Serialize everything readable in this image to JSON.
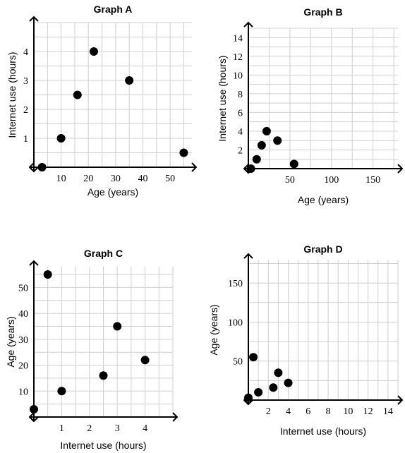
{
  "chart_data": [
    {
      "id": "A",
      "type": "scatter",
      "title": "Graph A",
      "xlabel": "Age (years)",
      "ylabel": "Internet use (hours)",
      "xlim": [
        0,
        58
      ],
      "ylim": [
        0,
        5
      ],
      "x_minor": 5,
      "y_minor": 0.5,
      "x_ticks": [
        10,
        20,
        30,
        40,
        50
      ],
      "y_ticks": [
        1,
        2,
        3,
        4
      ],
      "x": [
        3,
        10,
        16,
        22,
        35,
        55
      ],
      "y": [
        0,
        1,
        2.5,
        4,
        3,
        0.5
      ],
      "grid": true
    },
    {
      "id": "B",
      "type": "scatter",
      "title": "Graph B",
      "xlabel": "Age (years)",
      "ylabel": "Internet use (hours)",
      "xlim": [
        0,
        180
      ],
      "ylim": [
        0,
        15
      ],
      "x_minor": 25,
      "y_minor": 1,
      "x_ticks": [
        50,
        100,
        150
      ],
      "y_ticks": [
        2,
        4,
        6,
        8,
        10,
        12,
        14
      ],
      "x": [
        3,
        10,
        16,
        22,
        35,
        55
      ],
      "y": [
        0,
        1,
        2.5,
        4,
        3,
        0.5
      ],
      "grid": true
    },
    {
      "id": "C",
      "type": "scatter",
      "title": "Graph C",
      "xlabel": "Internet use (hours)",
      "ylabel": "Age (years)",
      "xlim": [
        0,
        5
      ],
      "ylim": [
        0,
        58
      ],
      "x_minor": 0.5,
      "y_minor": 5,
      "x_ticks": [
        1,
        2,
        3,
        4
      ],
      "y_ticks": [
        10,
        20,
        30,
        40,
        50
      ],
      "x": [
        0,
        1,
        2.5,
        4,
        3,
        0.5
      ],
      "y": [
        3,
        10,
        16,
        22,
        35,
        55
      ],
      "grid": true
    },
    {
      "id": "D",
      "type": "scatter",
      "title": "Graph D",
      "xlabel": "Internet use (hours)",
      "ylabel": "Age (years)",
      "xlim": [
        0,
        15
      ],
      "ylim": [
        0,
        180
      ],
      "x_minor": 1,
      "y_minor": 25,
      "x_ticks": [
        2,
        4,
        6,
        8,
        10,
        12,
        14
      ],
      "y_ticks": [
        50,
        100,
        150
      ],
      "x": [
        0,
        1,
        2.5,
        4,
        3,
        0.5
      ],
      "y": [
        3,
        10,
        16,
        22,
        35,
        55
      ],
      "grid": true
    }
  ]
}
